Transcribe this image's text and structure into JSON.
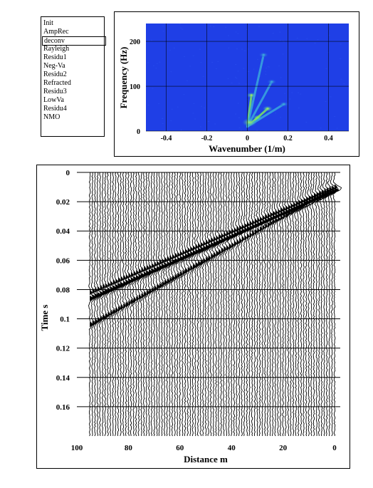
{
  "process_list": {
    "items": [
      "Init",
      "AmpRec",
      "deconv",
      "Rayleigh",
      "Residu1",
      "Neg-Va",
      "Residu2",
      "Refracted",
      "Residu3",
      "LowVa",
      "Residu4",
      "NMO"
    ],
    "selected_index": 2
  },
  "fk_plot": {
    "xlabel": "Wavenumber (1/m)",
    "ylabel": "Frequency (Hz)",
    "x_ticks": [
      "-0.4",
      "-0.2",
      "0",
      "0.2",
      "0.4"
    ],
    "y_ticks": [
      "0",
      "100",
      "200"
    ],
    "colors": {
      "background": "#1f3fe6",
      "mid": "#2a9ad8",
      "high": "#8cf04a"
    }
  },
  "chart_data": [
    {
      "type": "heatmap",
      "title": "",
      "xlabel": "Wavenumber (1/m)",
      "ylabel": "Frequency (Hz)",
      "xlim": [
        -0.5,
        0.5
      ],
      "ylim": [
        0,
        240
      ],
      "x_ticks": [
        -0.4,
        -0.2,
        0,
        0.2,
        0.4
      ],
      "y_ticks": [
        0,
        100,
        200
      ],
      "grid": true,
      "energy_fans": [
        {
          "k": 0.05,
          "f": 30,
          "level": "high"
        },
        {
          "k": 0.1,
          "f": 50,
          "level": "high"
        },
        {
          "k": 0.02,
          "f": 80,
          "level": "high"
        },
        {
          "k": 0.12,
          "f": 110,
          "level": "mid"
        },
        {
          "k": 0.08,
          "f": 170,
          "level": "mid"
        },
        {
          "k": 0.18,
          "f": 60,
          "level": "mid"
        }
      ]
    },
    {
      "type": "scatter",
      "title": "",
      "xlabel": "Distance m",
      "ylabel": "Time s",
      "xlim": [
        100,
        0
      ],
      "ylim": [
        0,
        0.18
      ],
      "x_ticks": [
        100,
        80,
        60,
        40,
        20,
        0
      ],
      "y_ticks": [
        0,
        0.02,
        0.04,
        0.06,
        0.08,
        0.1,
        0.12,
        0.14,
        0.16
      ],
      "grid": true,
      "trace_count": 96,
      "trace_spacing_m": 1,
      "events": [
        {
          "name": "",
          "t0": 0.012,
          "t1": 0.086
        },
        {
          "name": "",
          "t0": 0.01,
          "t1": 0.082
        },
        {
          "name": "",
          "t0": 0.01,
          "t1": 0.104
        }
      ]
    }
  ],
  "seismic_plot": {
    "xlabel": "Distance m",
    "ylabel": "Time s",
    "x_ticks": [
      "100",
      "80",
      "60",
      "40",
      "20",
      "0"
    ],
    "y_ticks": [
      "0",
      "0.02",
      "0.04",
      "0.06",
      "0.08",
      "0.1",
      "0.12",
      "0.14",
      "0.16"
    ]
  }
}
